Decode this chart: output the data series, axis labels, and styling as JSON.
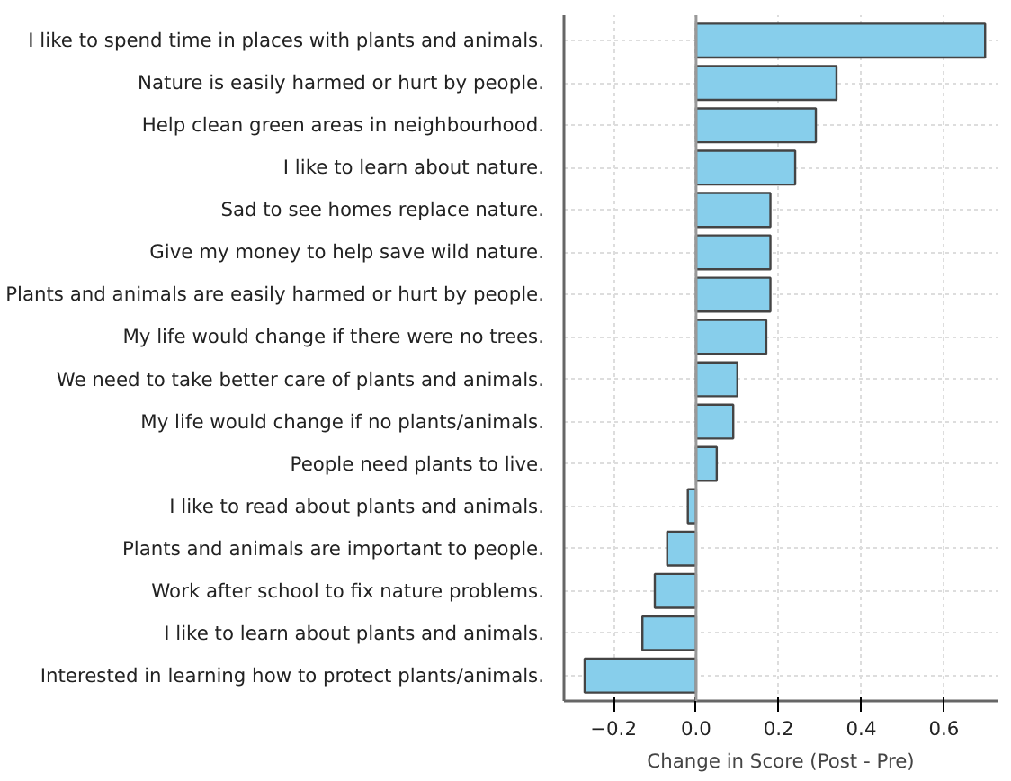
{
  "chart_data": {
    "type": "bar",
    "orientation": "horizontal",
    "xlabel": "Change in Score (Post - Pre)",
    "categories": [
      "I like to spend time in places with plants and animals.",
      "Nature is easily harmed or hurt by people.",
      "Help clean green areas in neighbourhood.",
      "I like to learn about nature.",
      "Sad to see homes replace nature.",
      "Give my money to help save wild nature.",
      "Plants and animals are easily harmed or hurt by people.",
      "My life would change if there were no trees.",
      "We need to take better care of plants and animals.",
      "My life would change if no plants/animals.",
      "People need plants to live.",
      "I like to read about plants and animals.",
      "Plants and animals are important to people.",
      "Work after school to fix nature problems.",
      "I like to learn about plants and animals.",
      "Interested in learning how to protect plants/animals."
    ],
    "values": [
      0.7,
      0.34,
      0.29,
      0.24,
      0.18,
      0.18,
      0.18,
      0.17,
      0.1,
      0.09,
      0.05,
      -0.02,
      -0.07,
      -0.1,
      -0.13,
      -0.27
    ],
    "color": "#87ceeb",
    "xlim": [
      -0.32,
      0.73
    ],
    "xticks": [
      {
        "value": -0.2,
        "label": "−0.2"
      },
      {
        "value": 0,
        "label": "0.0"
      },
      {
        "value": 0.2,
        "label": "0.2"
      },
      {
        "value": 0.4,
        "label": "0.4"
      },
      {
        "value": 0.6,
        "label": "0.6"
      }
    ],
    "ref_lines": [
      {
        "axis": "x",
        "value": 0,
        "color": "#999999"
      }
    ],
    "grid": true
  }
}
